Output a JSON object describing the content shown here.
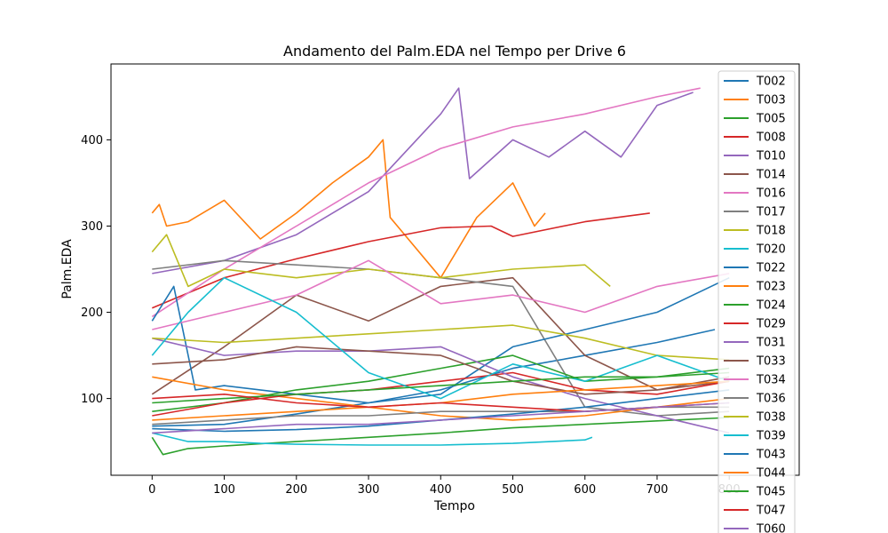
{
  "chart_data": {
    "type": "line",
    "title": "Andamento del Palm.EDA nel Tempo per Drive 6",
    "xlabel": "Tempo",
    "ylabel": "Palm.EDA",
    "xlim": [
      -57,
      897
    ],
    "ylim": [
      11,
      488
    ],
    "xticks": [
      0,
      100,
      200,
      300,
      400,
      500,
      600,
      700,
      800
    ],
    "xtick_labels": [
      "0",
      "100",
      "200",
      "300",
      "400",
      "500",
      "600",
      "700",
      "800"
    ],
    "yticks": [
      100,
      200,
      300,
      400
    ],
    "ytick_labels": [
      "100",
      "200",
      "300",
      "400"
    ],
    "grid": false,
    "legend_position": "upper-right",
    "series": [
      {
        "name": "T002",
        "color": "#1f77b4",
        "x": [
          0,
          100,
          200,
          300,
          400,
          500,
          600,
          700,
          780
        ],
        "y": [
          68,
          70,
          82,
          95,
          110,
          135,
          150,
          165,
          180
        ]
      },
      {
        "name": "T003",
        "color": "#ff7f0e",
        "x": [
          0,
          10,
          20,
          50,
          100,
          150,
          200,
          250,
          300,
          320,
          330,
          400,
          450,
          500,
          530,
          545
        ],
        "y": [
          315,
          325,
          300,
          305,
          330,
          285,
          315,
          350,
          380,
          400,
          310,
          240,
          310,
          350,
          300,
          315
        ]
      },
      {
        "name": "T005",
        "color": "#2ca02c",
        "x": [
          0,
          15,
          50,
          100,
          200,
          300,
          400,
          500,
          600,
          700,
          800
        ],
        "y": [
          55,
          35,
          42,
          45,
          50,
          55,
          60,
          66,
          70,
          74,
          78
        ]
      },
      {
        "name": "T008",
        "color": "#d62728",
        "x": [
          0,
          100,
          200,
          300,
          400,
          470,
          500,
          600,
          690
        ],
        "y": [
          205,
          240,
          262,
          282,
          298,
          300,
          288,
          305,
          315
        ]
      },
      {
        "name": "T010",
        "color": "#9467bd",
        "x": [
          0,
          100,
          200,
          300,
          400,
          425,
          440,
          500,
          550,
          600,
          650,
          700,
          750
        ],
        "y": [
          245,
          260,
          290,
          340,
          430,
          460,
          355,
          400,
          380,
          410,
          380,
          440,
          455
        ]
      },
      {
        "name": "T014",
        "color": "#8c564b",
        "x": [
          0,
          100,
          200,
          300,
          400,
          500,
          600,
          700,
          800
        ],
        "y": [
          105,
          160,
          220,
          190,
          230,
          240,
          150,
          110,
          120
        ]
      },
      {
        "name": "T016",
        "color": "#e377c2",
        "x": [
          0,
          100,
          200,
          300,
          400,
          500,
          600,
          700,
          760
        ],
        "y": [
          195,
          250,
          300,
          350,
          390,
          415,
          430,
          450,
          460
        ]
      },
      {
        "name": "T017",
        "color": "#7f7f7f",
        "x": [
          0,
          100,
          200,
          300,
          400,
          500,
          600,
          700,
          800
        ],
        "y": [
          250,
          260,
          255,
          250,
          240,
          230,
          90,
          80,
          85
        ]
      },
      {
        "name": "T018",
        "color": "#bcbd22",
        "x": [
          0,
          20,
          50,
          100,
          200,
          300,
          400,
          500,
          600,
          635
        ],
        "y": [
          270,
          290,
          230,
          250,
          240,
          250,
          240,
          250,
          255,
          230
        ]
      },
      {
        "name": "T020",
        "color": "#17becf",
        "x": [
          0,
          50,
          100,
          150,
          200,
          300,
          400,
          500,
          600,
          610
        ],
        "y": [
          60,
          50,
          50,
          48,
          47,
          46,
          46,
          48,
          52,
          55
        ]
      },
      {
        "name": "T022",
        "color": "#1f77b4",
        "x": [
          0,
          30,
          60,
          100,
          200,
          300,
          400,
          500,
          600,
          700,
          800
        ],
        "y": [
          190,
          230,
          110,
          115,
          105,
          95,
          105,
          160,
          180,
          200,
          240
        ]
      },
      {
        "name": "T023",
        "color": "#ff7f0e",
        "x": [
          0,
          100,
          200,
          300,
          400,
          500,
          600,
          700,
          800
        ],
        "y": [
          125,
          110,
          100,
          90,
          80,
          75,
          80,
          90,
          100
        ]
      },
      {
        "name": "T024",
        "color": "#2ca02c",
        "x": [
          0,
          100,
          200,
          300,
          400,
          500,
          600,
          700,
          800
        ],
        "y": [
          85,
          95,
          110,
          120,
          135,
          150,
          120,
          125,
          135
        ]
      },
      {
        "name": "T029",
        "color": "#d62728",
        "x": [
          0,
          100,
          200,
          300,
          400,
          500,
          600,
          700,
          800
        ],
        "y": [
          80,
          95,
          105,
          110,
          120,
          130,
          110,
          105,
          120
        ]
      },
      {
        "name": "T031",
        "color": "#9467bd",
        "x": [
          0,
          100,
          200,
          300,
          400,
          500,
          600,
          700,
          800
        ],
        "y": [
          170,
          150,
          155,
          155,
          160,
          125,
          100,
          80,
          60
        ]
      },
      {
        "name": "T033",
        "color": "#8c564b",
        "x": [
          0,
          100,
          200,
          300,
          400,
          500,
          600,
          700,
          800
        ],
        "y": [
          140,
          145,
          160,
          155,
          150,
          120,
          105,
          110,
          125
        ]
      },
      {
        "name": "T034",
        "color": "#e377c2",
        "x": [
          0,
          100,
          200,
          300,
          400,
          500,
          600,
          700,
          800
        ],
        "y": [
          180,
          200,
          220,
          260,
          210,
          220,
          200,
          230,
          245
        ]
      },
      {
        "name": "T036",
        "color": "#7f7f7f",
        "x": [
          0,
          100,
          200,
          300,
          400,
          500,
          600,
          700,
          800
        ],
        "y": [
          70,
          75,
          80,
          80,
          85,
          85,
          85,
          90,
          90
        ]
      },
      {
        "name": "T038",
        "color": "#bcbd22",
        "x": [
          0,
          100,
          200,
          300,
          400,
          500,
          600,
          700,
          800
        ],
        "y": [
          170,
          165,
          170,
          175,
          180,
          185,
          170,
          150,
          145
        ]
      },
      {
        "name": "T039",
        "color": "#17becf",
        "x": [
          0,
          50,
          100,
          200,
          300,
          400,
          500,
          600,
          700,
          800
        ],
        "y": [
          150,
          200,
          240,
          200,
          130,
          100,
          140,
          120,
          150,
          120
        ]
      },
      {
        "name": "T043",
        "color": "#1f77b4",
        "x": [
          0,
          100,
          200,
          300,
          400,
          500,
          600,
          700,
          800
        ],
        "y": [
          65,
          62,
          64,
          68,
          75,
          82,
          90,
          100,
          110
        ]
      },
      {
        "name": "T044",
        "color": "#ff7f0e",
        "x": [
          0,
          100,
          200,
          300,
          400,
          500,
          600,
          700,
          800
        ],
        "y": [
          75,
          80,
          85,
          90,
          95,
          105,
          110,
          115,
          120
        ]
      },
      {
        "name": "T045",
        "color": "#2ca02c",
        "x": [
          0,
          100,
          200,
          300,
          400,
          500,
          600,
          700,
          800
        ],
        "y": [
          95,
          100,
          105,
          110,
          115,
          120,
          125,
          125,
          130
        ]
      },
      {
        "name": "T047",
        "color": "#d62728",
        "x": [
          0,
          100,
          200,
          300,
          400,
          500,
          600,
          700,
          800
        ],
        "y": [
          100,
          105,
          95,
          90,
          95,
          90,
          85,
          90,
          95
        ]
      },
      {
        "name": "T060",
        "color": "#9467bd",
        "x": [
          0,
          100,
          200,
          300,
          400,
          500,
          600,
          700,
          800
        ],
        "y": [
          60,
          65,
          70,
          70,
          75,
          80,
          85,
          90,
          95
        ]
      }
    ]
  }
}
